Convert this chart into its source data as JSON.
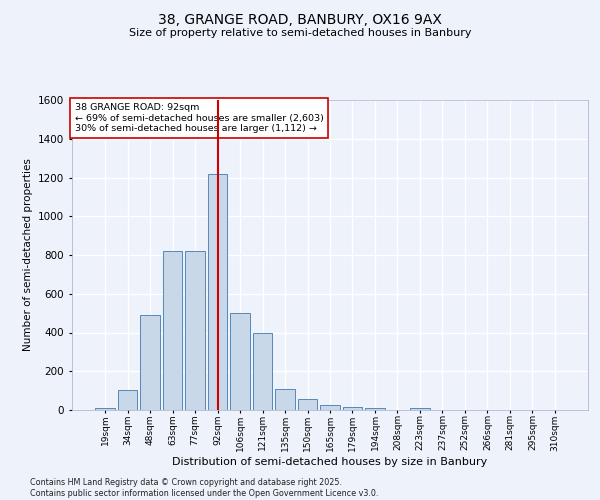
{
  "title1": "38, GRANGE ROAD, BANBURY, OX16 9AX",
  "title2": "Size of property relative to semi-detached houses in Banbury",
  "xlabel": "Distribution of semi-detached houses by size in Banbury",
  "ylabel": "Number of semi-detached properties",
  "bar_labels": [
    "19sqm",
    "34sqm",
    "48sqm",
    "63sqm",
    "77sqm",
    "92sqm",
    "106sqm",
    "121sqm",
    "135sqm",
    "150sqm",
    "165sqm",
    "179sqm",
    "194sqm",
    "208sqm",
    "223sqm",
    "237sqm",
    "252sqm",
    "266sqm",
    "281sqm",
    "295sqm",
    "310sqm"
  ],
  "bar_values": [
    10,
    105,
    490,
    820,
    820,
    1220,
    500,
    400,
    110,
    55,
    25,
    15,
    10,
    0,
    10,
    0,
    0,
    0,
    0,
    0,
    0
  ],
  "bar_color": "#c8d8e8",
  "bar_edge_color": "#5588bb",
  "property_label": "38 GRANGE ROAD: 92sqm",
  "annotation_line1": "← 69% of semi-detached houses are smaller (2,603)",
  "annotation_line2": "30% of semi-detached houses are larger (1,112) →",
  "vline_color": "#cc0000",
  "ylim": [
    0,
    1600
  ],
  "yticks": [
    0,
    200,
    400,
    600,
    800,
    1000,
    1200,
    1400,
    1600
  ],
  "bg_color": "#eef2fb",
  "grid_color": "#ffffff",
  "footnote1": "Contains HM Land Registry data © Crown copyright and database right 2025.",
  "footnote2": "Contains public sector information licensed under the Open Government Licence v3.0."
}
